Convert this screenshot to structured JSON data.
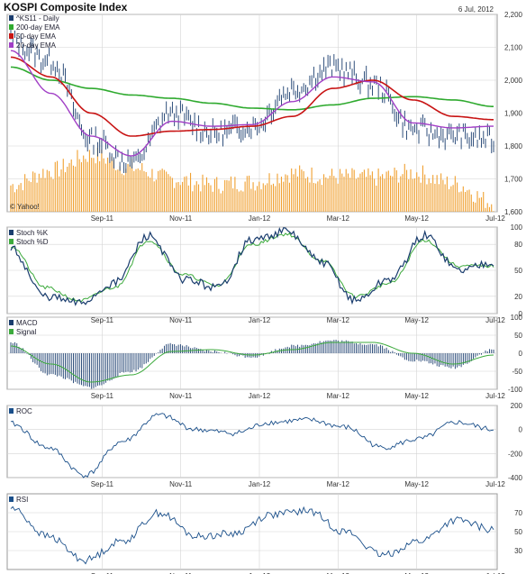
{
  "title": "KOSPI Composite Index",
  "date": "6 Jul, 2012",
  "watermark": "© Yahoo!",
  "x_labels": [
    "Sep-11",
    "Nov-11",
    "Jan-12",
    "Mar-12",
    "May-12",
    "Jul-12"
  ],
  "colors": {
    "price": "#1a3d6e",
    "ema200": "#2faa2f",
    "ema50": "#c81414",
    "ema20": "#a13fc6",
    "volume": "#f0a030",
    "stochK": "#1a3d6e",
    "stochD": "#3caa3c",
    "macd": "#1a3d6e",
    "signal": "#3caa3c",
    "roc": "#1a4f8a",
    "rsi": "#1a4f8a",
    "grid": "#d4d4d4"
  },
  "chart_data": [
    {
      "type": "line",
      "panel": "price",
      "series_names": [
        "^KS11 - Daily",
        "200-day EMA",
        "50-day EMA",
        "20-day EMA"
      ],
      "y_ticks": [
        "2,200",
        "2,100",
        "2,000",
        "1,900",
        "1,800",
        "1,700",
        "1,600"
      ],
      "ylim": [
        1600,
        2200
      ],
      "x": [
        "Jul-11",
        "Aug-11",
        "Sep-11",
        "Oct-11",
        "Nov-11",
        "Dec-11",
        "Jan-12",
        "Feb-12",
        "Mar-12",
        "Apr-12",
        "May-12",
        "Jun-12",
        "Jul-12"
      ],
      "price": [
        2120,
        2060,
        1820,
        1750,
        1900,
        1840,
        1860,
        1970,
        2040,
        1990,
        1850,
        1830,
        1820
      ],
      "ema200": [
        2040,
        2000,
        1975,
        1955,
        1945,
        1930,
        1915,
        1910,
        1925,
        1945,
        1950,
        1940,
        1920
      ],
      "ema50": [
        2070,
        2010,
        1900,
        1830,
        1845,
        1850,
        1860,
        1890,
        1975,
        2000,
        1940,
        1890,
        1880
      ],
      "ema20": [
        2090,
        1960,
        1830,
        1770,
        1875,
        1860,
        1865,
        1935,
        2010,
        1995,
        1870,
        1855,
        1860
      ],
      "volume_max": 1000,
      "volume": [
        420,
        650,
        900,
        700,
        520,
        430,
        470,
        610,
        560,
        540,
        620,
        450,
        150
      ]
    },
    {
      "type": "line",
      "panel": "stochastic",
      "series_names": [
        "Stoch %K",
        "Stoch %D"
      ],
      "y_ticks": [
        "100",
        "80",
        "50",
        "20",
        "0"
      ],
      "ylim": [
        0,
        100
      ],
      "k": [
        75,
        20,
        12,
        35,
        90,
        40,
        30,
        85,
        95,
        60,
        15,
        40,
        90,
        50,
        60
      ],
      "d": [
        78,
        30,
        15,
        30,
        85,
        45,
        32,
        80,
        92,
        62,
        20,
        35,
        85,
        55,
        55
      ]
    },
    {
      "type": "bar",
      "panel": "macd",
      "series_names": [
        "MACD",
        "Signal"
      ],
      "y_ticks": [
        "100",
        "50",
        "0",
        "-50",
        "-100"
      ],
      "ylim": [
        -100,
        100
      ],
      "macd": [
        30,
        -60,
        -95,
        -50,
        25,
        5,
        -10,
        20,
        35,
        25,
        -20,
        -40,
        10
      ],
      "signal": [
        20,
        -30,
        -80,
        -60,
        5,
        10,
        -5,
        10,
        30,
        30,
        0,
        -30,
        -5
      ]
    },
    {
      "type": "line",
      "panel": "roc",
      "series_names": [
        "ROC"
      ],
      "y_ticks": [
        "200",
        "0",
        "-200",
        "-400"
      ],
      "ylim": [
        -400,
        200
      ],
      "values": [
        50,
        -150,
        -380,
        -100,
        120,
        0,
        -30,
        60,
        80,
        20,
        -150,
        -80,
        60,
        0
      ]
    },
    {
      "type": "line",
      "panel": "rsi",
      "series_names": [
        "RSI"
      ],
      "y_ticks": [
        "70",
        "50",
        "30"
      ],
      "ylim": [
        10,
        90
      ],
      "values": [
        75,
        45,
        20,
        40,
        70,
        45,
        48,
        68,
        72,
        50,
        25,
        40,
        62,
        52
      ]
    }
  ]
}
